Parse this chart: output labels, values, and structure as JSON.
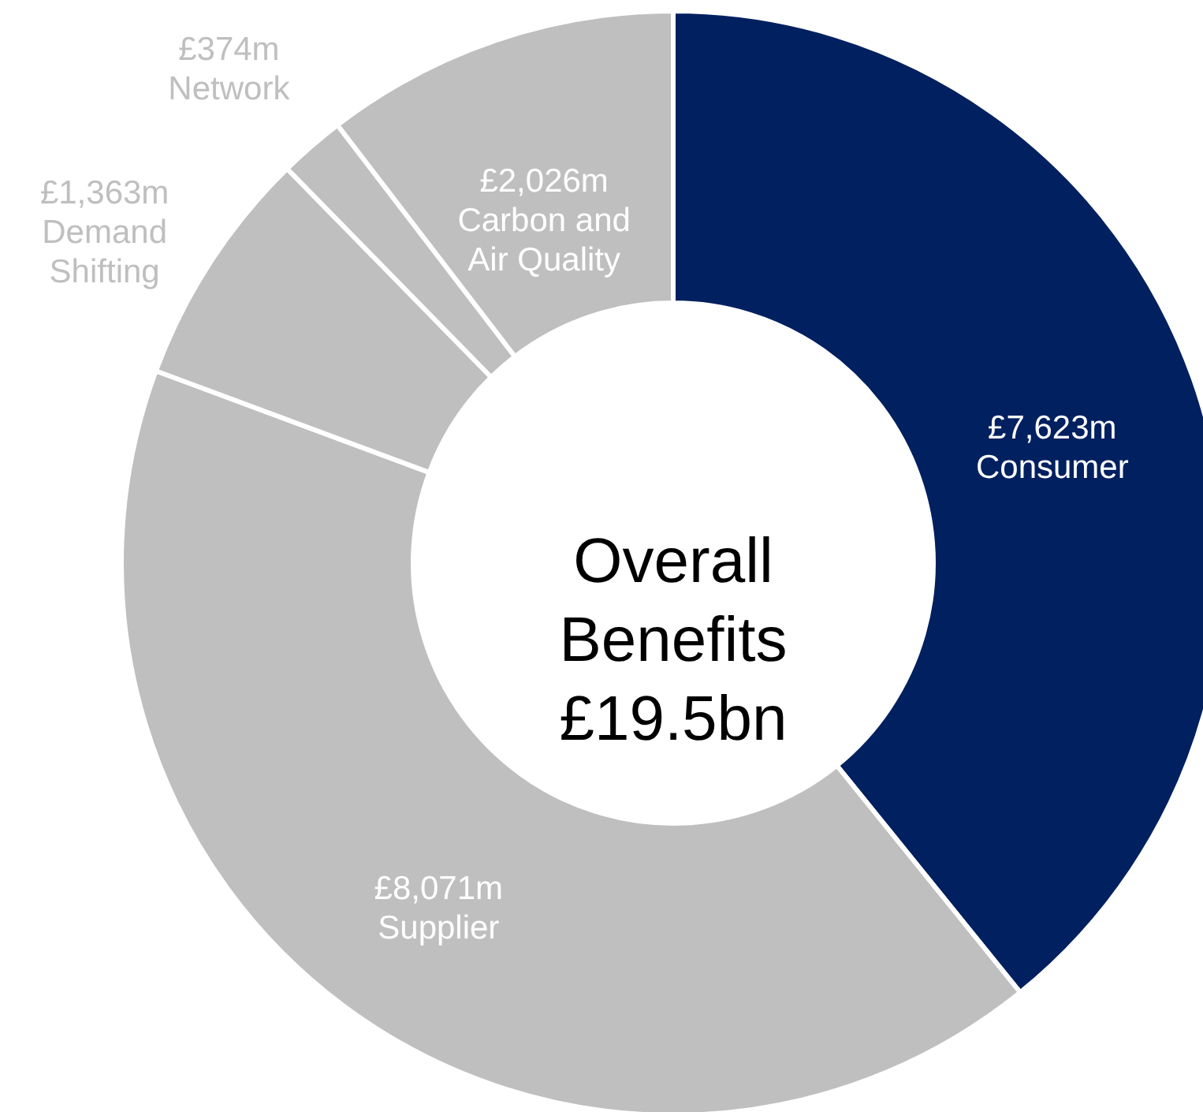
{
  "chart_data": {
    "type": "donut",
    "title": "Overall Benefits £19.5bn",
    "categories": [
      "Consumer",
      "Supplier",
      "Demand Shifting",
      "Network",
      "Carbon and Air Quality"
    ],
    "values": [
      7623,
      8071,
      1363,
      374,
      2026
    ],
    "colors": [
      "#002060",
      "#bfbfbf",
      "#bfbfbf",
      "#bfbfbf",
      "#bfbfbf"
    ],
    "value_labels": [
      "£7,623m",
      "£8,071m",
      "£1,363m",
      "£374m",
      "£2,026m"
    ]
  }
}
